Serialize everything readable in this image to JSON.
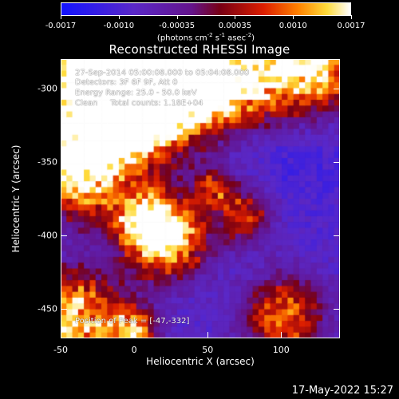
{
  "colorbar": {
    "ticks": [
      "-0.0017",
      "-0.0010",
      "-0.00035",
      "0.00035",
      "0.0010",
      "0.0017"
    ],
    "units": "(photons cm",
    "units_exp1": "-2",
    "units_mid1": " s",
    "units_exp2": "-1",
    "units_mid2": " asec",
    "units_exp3": "-2",
    "units_end": ")"
  },
  "title": "Reconstructed RHESSI Image",
  "annotations": {
    "time_range": "27-Sep-2014 05:00:08.000 to 05:04:08.000",
    "detectors": "Detectors: 3F 6F 9F, Att 0",
    "energy_range": "Energy Range: 25.0 - 50.0 keV",
    "clean_counts": "Clean     Total counts: 1.18E+04",
    "peak_position": "Position of Peak = [-47,-332]"
  },
  "axes": {
    "xlabel": "Heliocentric X (arcsec)",
    "ylabel": "Heliocentric Y (arcsec)",
    "xticks": [
      "-50",
      "0",
      "50",
      "100"
    ],
    "yticks": [
      "-300",
      "-350",
      "-400",
      "-450"
    ],
    "xlim": [
      -50,
      140
    ],
    "ylim": [
      -470,
      -280
    ]
  },
  "footer": {
    "date": "17-May-2022 15:27"
  }
}
